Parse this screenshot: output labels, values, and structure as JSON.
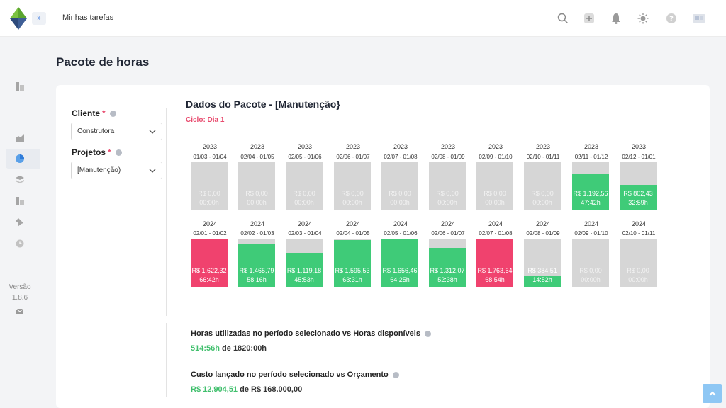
{
  "header": {
    "title": "Minhas tarefas"
  },
  "sidebar": {
    "version_label": "Versão",
    "version_number": "1.8.6"
  },
  "page": {
    "title": "Pacote de horas"
  },
  "filters": {
    "client_label": "Cliente",
    "client_value": "Construtora",
    "project_label": "Projetos",
    "project_value": "[Manutenção)",
    "required_mark": "*"
  },
  "package": {
    "title": "Dados do Pacote - [Manutenção}",
    "cycle": "Ciclo: Dia 1"
  },
  "colors": {
    "gray": "#d6d6d6",
    "green": "#3fcb78",
    "red": "#f0426e",
    "accent_pink": "#e84b6e"
  },
  "periods": [
    {
      "year": "2023",
      "range": "01/03 - 01/04",
      "value": "R$ 0,00",
      "hours": "00:00h",
      "status": "empty",
      "fill": 0
    },
    {
      "year": "2023",
      "range": "02/04 - 01/05",
      "value": "R$ 0,00",
      "hours": "00:00h",
      "status": "empty",
      "fill": 0
    },
    {
      "year": "2023",
      "range": "02/05 - 01/06",
      "value": "R$ 0,00",
      "hours": "00:00h",
      "status": "empty",
      "fill": 0
    },
    {
      "year": "2023",
      "range": "02/06 - 01/07",
      "value": "R$ 0,00",
      "hours": "00:00h",
      "status": "empty",
      "fill": 0
    },
    {
      "year": "2023",
      "range": "02/07 - 01/08",
      "value": "R$ 0,00",
      "hours": "00:00h",
      "status": "empty",
      "fill": 0
    },
    {
      "year": "2023",
      "range": "02/08 - 01/09",
      "value": "R$ 0,00",
      "hours": "00:00h",
      "status": "empty",
      "fill": 0
    },
    {
      "year": "2023",
      "range": "02/09 - 01/10",
      "value": "R$ 0,00",
      "hours": "00:00h",
      "status": "empty",
      "fill": 0
    },
    {
      "year": "2023",
      "range": "02/10 - 01/11",
      "value": "R$ 0,00",
      "hours": "00:00h",
      "status": "empty",
      "fill": 0
    },
    {
      "year": "2023",
      "range": "02/11 - 01/12",
      "value": "R$ 1.192,56",
      "hours": "47:42h",
      "status": "ok",
      "fill": 0.75
    },
    {
      "year": "2023",
      "range": "02/12 - 01/01",
      "value": "R$ 802,43",
      "hours": "32:59h",
      "status": "ok",
      "fill": 0.52
    },
    {
      "year": "2024",
      "range": "02/01 - 01/02",
      "value": "R$ 1.622,32",
      "hours": "66:42h",
      "status": "over",
      "fill": 1
    },
    {
      "year": "2024",
      "range": "02/02 - 01/03",
      "value": "R$ 1.465,79",
      "hours": "58:16h",
      "status": "ok",
      "fill": 0.9
    },
    {
      "year": "2024",
      "range": "02/03 - 01/04",
      "value": "R$ 1.119,18",
      "hours": "45:53h",
      "status": "ok",
      "fill": 0.72
    },
    {
      "year": "2024",
      "range": "02/04 - 01/05",
      "value": "R$ 1.595,53",
      "hours": "63:31h",
      "status": "ok",
      "fill": 0.98
    },
    {
      "year": "2024",
      "range": "02/05 - 01/06",
      "value": "R$ 1.656,46",
      "hours": "64:25h",
      "status": "ok",
      "fill": 1
    },
    {
      "year": "2024",
      "range": "02/06 - 01/07",
      "value": "R$ 1.312,07",
      "hours": "52:38h",
      "status": "ok",
      "fill": 0.82
    },
    {
      "year": "2024",
      "range": "02/07 - 01/08",
      "value": "R$ 1.763,64",
      "hours": "68:54h",
      "status": "over",
      "fill": 1
    },
    {
      "year": "2024",
      "range": "02/08 - 01/09",
      "value": "R$ 384,51",
      "hours": "14:52h",
      "status": "ok",
      "fill": 0.24
    },
    {
      "year": "2024",
      "range": "02/09 - 01/10",
      "value": "R$ 0,00",
      "hours": "00:00h",
      "status": "empty",
      "fill": 0
    },
    {
      "year": "2024",
      "range": "02/10 - 01/11",
      "value": "R$ 0,00",
      "hours": "00:00h",
      "status": "empty",
      "fill": 0
    }
  ],
  "stats": {
    "hours_label": "Horas utilizadas no período selecionado vs Horas disponíveis",
    "hours_used": "514:56h",
    "hours_total": "de 1820:00h",
    "cost_label": "Custo lançado no período selecionado vs Orçamento",
    "cost_used": "R$ 12.904,51",
    "cost_total": "de R$ 168.000,00"
  }
}
